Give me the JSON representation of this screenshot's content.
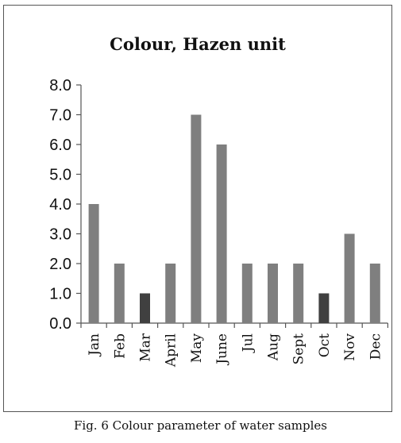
{
  "chart_data": {
    "type": "bar",
    "title": "Colour, Hazen unit",
    "xlabel": "",
    "ylabel": "",
    "categories": [
      "Jan",
      "Feb",
      "Mar",
      "April",
      "May",
      "June",
      "Jul",
      "Aug",
      "Sept",
      "Oct",
      "Nov",
      "Dec"
    ],
    "values": [
      4,
      2,
      1,
      2,
      7,
      6,
      2,
      2,
      2,
      1,
      3,
      2
    ],
    "ylim": [
      0,
      8
    ],
    "yticks": [
      "0.0",
      "1.0",
      "2.0",
      "3.0",
      "4.0",
      "5.0",
      "6.0",
      "7.0",
      "8.0"
    ],
    "grid": false,
    "colors": {
      "bar": "#7f7f7f",
      "bar_dark": "#404040",
      "axis": "#555555"
    },
    "dark_categories": [
      "Mar",
      "Oct"
    ]
  },
  "caption": "Fig. 6 Colour parameter  of water samples"
}
